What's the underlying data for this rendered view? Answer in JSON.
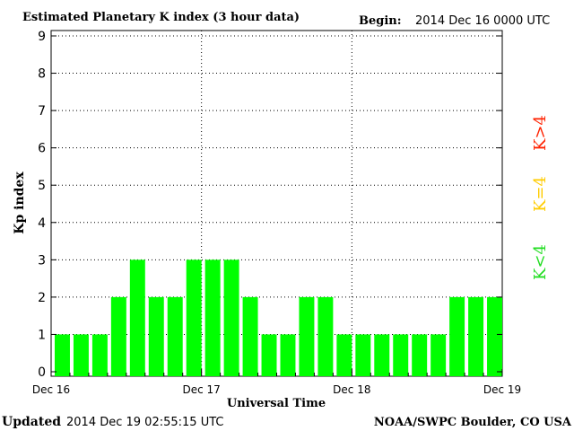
{
  "header": {
    "title": "Estimated Planetary K index (3 hour data)",
    "begin_label": "Begin:",
    "begin_value": "2014 Dec 16 0000 UTC"
  },
  "footer": {
    "updated_label": "Updated",
    "updated_value": "2014 Dec 19 02:55:15 UTC",
    "source": "NOAA/SWPC Boulder, CO USA"
  },
  "legend": {
    "high": "K>4",
    "equal": "K=4",
    "low": "K<4"
  },
  "colors": {
    "bar_low": "#00ff00",
    "bar_equal": "#ffcc00",
    "bar_high": "#ff0000",
    "legend_high": "#ff2200",
    "legend_equal": "#ffcc00",
    "legend_low": "#22dd22",
    "axis": "#000000",
    "grid": "#000000"
  },
  "chart_data": {
    "type": "bar",
    "title": "Estimated Planetary K index (3 hour data)",
    "xlabel": "Universal Time",
    "ylabel": "Kp index",
    "ylim": [
      0,
      9
    ],
    "yticks": [
      "0",
      "1",
      "2",
      "3",
      "4",
      "5",
      "6",
      "7",
      "8",
      "9"
    ],
    "xticks": [
      "Dec 16",
      "Dec 17",
      "Dec 18",
      "Dec 19"
    ],
    "grid": "dotted",
    "bar_interval_hours": 3,
    "values": [
      1,
      1,
      1,
      2,
      3,
      2,
      2,
      3,
      3,
      3,
      2,
      1,
      1,
      2,
      2,
      1,
      1,
      1,
      1,
      1,
      1,
      2,
      2,
      2
    ]
  }
}
